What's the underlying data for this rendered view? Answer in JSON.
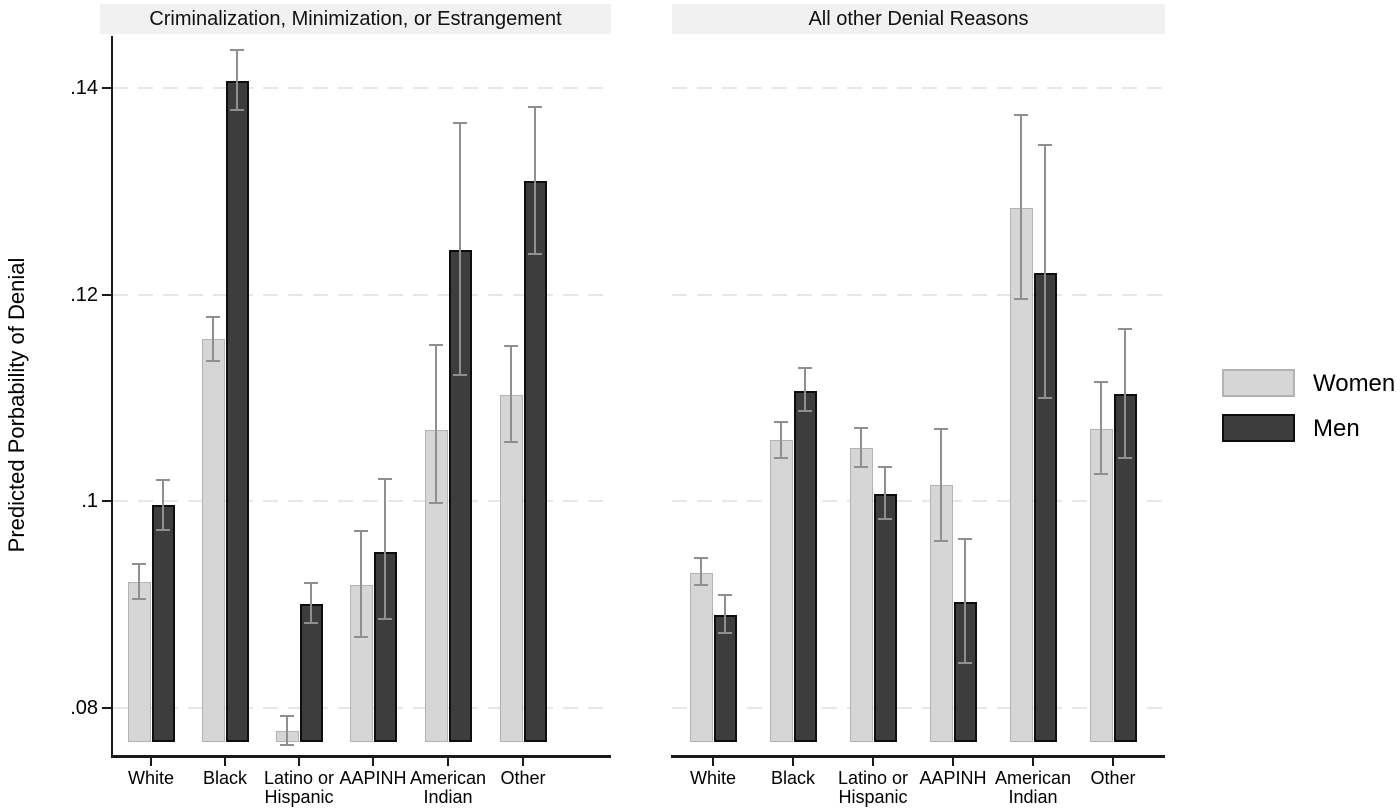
{
  "figure": {
    "ylabel": "Predicted Porbability of Denial",
    "y_ticks_display": [
      ".08",
      ".1",
      ".12",
      ".14"
    ],
    "background": "#ffffff",
    "strip_background": "#f1f1f1",
    "gridline_color": "#e7e7e7",
    "error_bar_color": "#8f8f8f",
    "legend": [
      {
        "label": "Women",
        "fill": "#d6d6d6",
        "border": "#b3b3b3"
      },
      {
        "label": "Men",
        "fill": "#3d3d3d",
        "border": "#0e0e0e"
      }
    ]
  },
  "chart_data": {
    "type": "bar",
    "title": "",
    "xlabel": "",
    "ylabel": "Predicted Porbability of Denial",
    "ylim": [
      0.0767,
      0.1446
    ],
    "y_ticks": [
      0.08,
      0.1,
      0.12,
      0.14
    ],
    "grid": true,
    "legend_position": "right-center",
    "categories": [
      "White",
      "Black",
      "Latino or\nHispanic",
      "AAPINH",
      "American\nIndian",
      "Other"
    ],
    "panels": [
      {
        "title": "Criminalization, Minimization, or Estrangement",
        "series": [
          {
            "name": "Women",
            "values": [
              0.0922,
              0.1157,
              0.0778,
              0.0919,
              0.1069,
              0.1103
            ],
            "ci_low": [
              0.0905,
              0.1136,
              0.0764,
              0.0869,
              0.0998,
              0.1057
            ],
            "ci_high": [
              0.0939,
              0.1178,
              0.0792,
              0.0971,
              0.1151,
              0.115
            ]
          },
          {
            "name": "Men",
            "values": [
              0.0996,
              0.1407,
              0.0901,
              0.0951,
              0.1243,
              0.131
            ],
            "ci_low": [
              0.0972,
              0.1379,
              0.0882,
              0.0886,
              0.1122,
              0.1239
            ],
            "ci_high": [
              0.1021,
              0.1437,
              0.0921,
              0.1022,
              0.1366,
              0.1382
            ]
          }
        ]
      },
      {
        "title": "All other Denial Reasons",
        "series": [
          {
            "name": "Women",
            "values": [
              0.0931,
              0.1059,
              0.1052,
              0.1016,
              0.1284,
              0.107
            ],
            "ci_low": [
              0.0919,
              0.1042,
              0.1033,
              0.0962,
              0.1196,
              0.1026
            ],
            "ci_high": [
              0.0945,
              0.1077,
              0.1071,
              0.107,
              0.1374,
              0.1115
            ]
          },
          {
            "name": "Men",
            "values": [
              0.089,
              0.1107,
              0.1007,
              0.0903,
              0.1221,
              0.1104
            ],
            "ci_low": [
              0.0873,
              0.1087,
              0.0983,
              0.0844,
              0.11,
              0.1042
            ],
            "ci_high": [
              0.0909,
              0.1129,
              0.1033,
              0.0964,
              0.1345,
              0.1167
            ]
          }
        ]
      }
    ]
  }
}
